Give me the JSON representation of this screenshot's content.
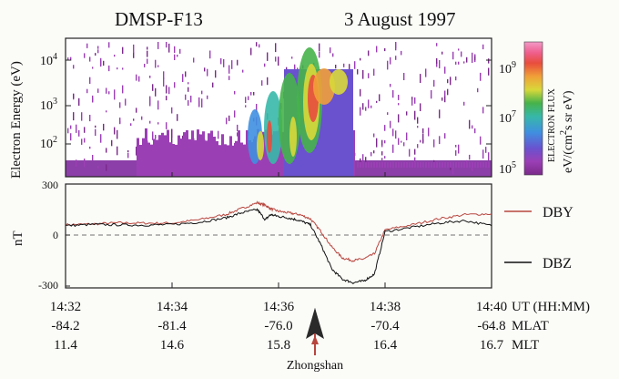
{
  "header": {
    "satellite": "DMSP-F13",
    "date": "3 August 1997"
  },
  "spectrogram": {
    "ylabel": "Electron Energy (eV)",
    "yticks": [
      {
        "base": "10",
        "exp": "2",
        "value": 100
      },
      {
        "base": "10",
        "exp": "3",
        "value": 1000
      },
      {
        "base": "10",
        "exp": "4",
        "value": 10000
      }
    ],
    "colorbar": {
      "title": "ELECTRON FLUX",
      "units": "eV/(cm",
      "units_sup": "2",
      "units_tail": "s sr eV)",
      "ticks": [
        {
          "base": "10",
          "exp": "9"
        },
        {
          "base": "10",
          "exp": "7"
        },
        {
          "base": "10",
          "exp": "5"
        }
      ],
      "colors": [
        "#7a2a8a",
        "#9b3fb5",
        "#6a52cf",
        "#3f8fe0",
        "#37b8a8",
        "#46b24a",
        "#d8d83a",
        "#f0a038",
        "#e84d3c",
        "#ef5f8e",
        "#f39ac8"
      ]
    }
  },
  "magnetometer": {
    "ylabel": "nT",
    "yticks": [
      "300",
      "0",
      "-300"
    ],
    "legend": [
      {
        "label": "DBY",
        "color": "#b8463e"
      },
      {
        "label": "DBZ",
        "color": "#111111"
      }
    ]
  },
  "axis_rows": [
    {
      "values": [
        "14:32",
        "14:34",
        "14:36",
        "14:38",
        "14:40"
      ],
      "label": "UT (HH:MM)"
    },
    {
      "values": [
        "-84.2",
        "-81.4",
        "-76.0",
        "-70.4",
        "-64.8"
      ],
      "label": "MLAT"
    },
    {
      "values": [
        "11.4",
        "14.6",
        "15.8",
        "16.4",
        "16.7"
      ],
      "label": "MLT"
    }
  ],
  "station": {
    "label": "Zhongshan",
    "arrow_color": "#b8463e"
  },
  "chart_data": {
    "type": "line",
    "title": "DMSP-F13 3 August 1997",
    "x_unit": "minutes after 14:32 UT",
    "xlim": [
      0,
      8
    ],
    "ylim": [
      -300,
      300
    ],
    "ylabel": "nT",
    "series": [
      {
        "name": "DBY",
        "x": [
          0,
          0.5,
          1,
          1.5,
          2,
          2.5,
          3,
          3.3,
          3.6,
          3.75,
          3.85,
          4.0,
          4.2,
          4.4,
          4.6,
          4.8,
          5.0,
          5.2,
          5.4,
          5.6,
          5.8,
          6.0,
          6.5,
          7.0,
          7.5,
          8.0
        ],
        "y": [
          60,
          65,
          72,
          70,
          70,
          90,
          120,
          155,
          190,
          175,
          155,
          140,
          130,
          120,
          95,
          20,
          -70,
          -135,
          -150,
          -140,
          -110,
          30,
          60,
          95,
          120,
          125
        ]
      },
      {
        "name": "DBZ",
        "x": [
          0,
          0.5,
          1,
          1.5,
          2,
          2.5,
          3,
          3.3,
          3.6,
          3.75,
          3.85,
          4.0,
          4.2,
          4.4,
          4.6,
          4.8,
          5.0,
          5.2,
          5.4,
          5.6,
          5.8,
          6.0,
          6.5,
          7.0,
          7.5,
          8.0
        ],
        "y": [
          55,
          62,
          60,
          58,
          62,
          75,
          100,
          130,
          150,
          90,
          120,
          110,
          100,
          85,
          60,
          -60,
          -200,
          -260,
          -280,
          -270,
          -230,
          20,
          45,
          70,
          85,
          55
        ]
      }
    ]
  }
}
